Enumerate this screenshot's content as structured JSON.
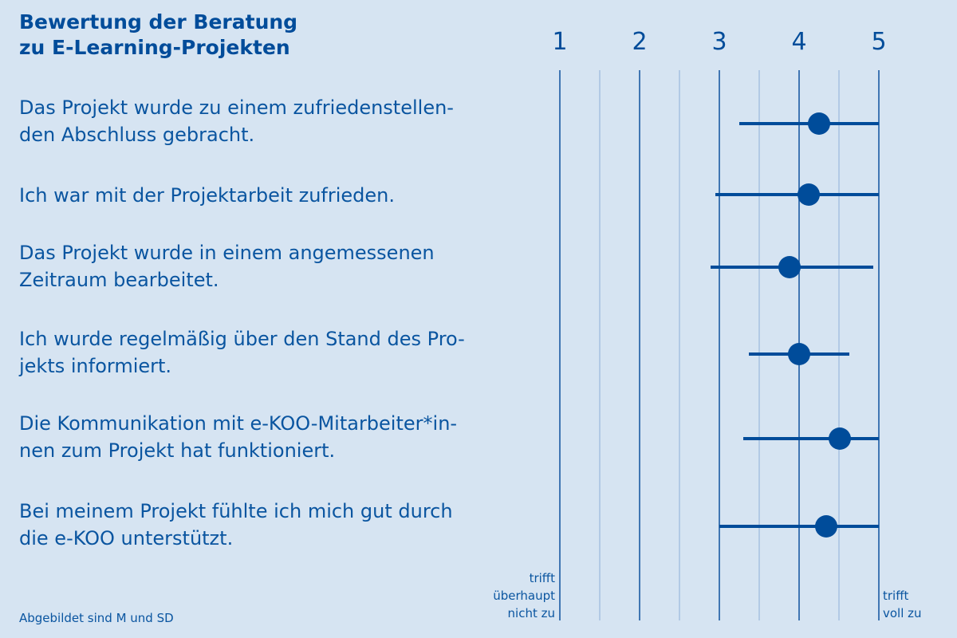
{
  "header": {
    "title": "Bewertung der Beratung\nzu E-Learning-Projekten"
  },
  "footnote": "Abgebildet sind M und SD",
  "chart_data": {
    "type": "errorbar-dot",
    "orientation": "horizontal",
    "x_ticks": [
      1,
      2,
      3,
      4,
      5
    ],
    "xlim": [
      1,
      5
    ],
    "grid": true,
    "scale_low_label": [
      "trifft",
      "überhaupt",
      "nicht zu"
    ],
    "scale_high_label": [
      "trifft",
      "voll zu"
    ],
    "items": [
      {
        "label": "Das Projekt wurde zu einem zufriedenstellen-\nden Abschluss gebracht.",
        "mean": 4.25,
        "low": 3.25,
        "high": 5.0
      },
      {
        "label": "Ich war mit der Projektarbeit zufrieden.",
        "mean": 4.12,
        "low": 2.95,
        "high": 5.0
      },
      {
        "label": "Das Projekt wurde in einem angemessenen\nZeitraum bearbeitet.",
        "mean": 3.88,
        "low": 2.89,
        "high": 4.93
      },
      {
        "label": "Ich wurde regelmäßig über den Stand des Pro-\njekts informiert.",
        "mean": 4.0,
        "low": 3.37,
        "high": 4.63
      },
      {
        "label": "Die Kommunikation mit e-KOO-Mitarbeiter*in-\nnen zum Projekt hat funktioniert.",
        "mean": 4.51,
        "low": 3.3,
        "high": 5.0
      },
      {
        "label": "Bei meinem Projekt fühlte ich mich gut durch\ndie e-KOO unterstützt.",
        "mean": 4.34,
        "low": 3.0,
        "high": 5.0
      }
    ]
  }
}
